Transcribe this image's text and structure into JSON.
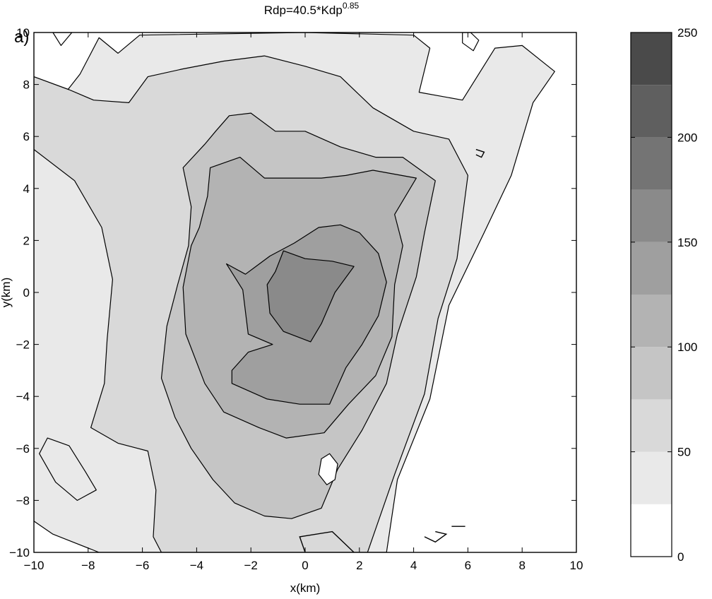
{
  "panel_label": "a)",
  "title": {
    "base": "Rdp=40.5*Kdp",
    "exponent": "0.85"
  },
  "colorbar": {
    "range": [
      0,
      250
    ],
    "levels": [
      0,
      25,
      50,
      75,
      100,
      125,
      150,
      175,
      200,
      225,
      250
    ],
    "level_greys": [
      "#ffffff",
      "#e9e9e9",
      "#d9d9d9",
      "#c5c5c5",
      "#b3b3b3",
      "#9f9f9f",
      "#8a8a8a",
      "#747474",
      "#5f5f5f",
      "#4a4a4a"
    ],
    "ticks": [
      0,
      50,
      100,
      150,
      200,
      250
    ],
    "tick_labels": [
      "0",
      "50",
      "100",
      "150",
      "200",
      "250"
    ]
  },
  "chart_data": {
    "type": "contour",
    "title": "Rdp=40.5*Kdp^0.85",
    "xlabel": "x(km)",
    "ylabel": "y(km)",
    "xlim": [
      -10,
      10
    ],
    "ylim": [
      -10,
      10
    ],
    "xticks": [
      -10,
      -8,
      -6,
      -4,
      -2,
      0,
      2,
      4,
      6,
      8,
      10
    ],
    "yticks": [
      -10,
      -8,
      -6,
      -4,
      -2,
      0,
      2,
      4,
      6,
      8,
      10
    ],
    "xtick_labels": [
      "−10",
      "−8",
      "−6",
      "−4",
      "−2",
      "0",
      "2",
      "4",
      "6",
      "8",
      "10"
    ],
    "ytick_labels": [
      "−10",
      "−8",
      "−6",
      "−4",
      "−2",
      "0",
      "2",
      "4",
      "6",
      "8",
      "10"
    ],
    "grid": false,
    "contour_levels": [
      25,
      50,
      75,
      100,
      125,
      150
    ],
    "regions": [
      {
        "level": 25,
        "fill": "#e9e9e9",
        "points": [
          [
            -10,
            7
          ],
          [
            -9.2,
            7.2
          ],
          [
            -8.3,
            8.4
          ],
          [
            -7.6,
            9.8
          ],
          [
            -6.9,
            9.2
          ],
          [
            -6.1,
            9.9
          ],
          [
            0,
            10
          ],
          [
            4,
            9.9
          ],
          [
            4.6,
            9.4
          ],
          [
            4.2,
            7.7
          ],
          [
            5.8,
            7.4
          ],
          [
            7,
            9.4
          ],
          [
            8,
            9.5
          ],
          [
            9.2,
            8.5
          ],
          [
            8.4,
            7.3
          ],
          [
            7.6,
            4.5
          ],
          [
            6.6,
            2.3
          ],
          [
            5.3,
            -0.5
          ],
          [
            4.6,
            -4.1
          ],
          [
            3.4,
            -7.2
          ],
          [
            3,
            -10
          ],
          [
            -7.6,
            -10
          ],
          [
            -9.3,
            -9.3
          ],
          [
            -10,
            -8.8
          ]
        ]
      },
      {
        "level": 25,
        "fill": "#e9e9e9",
        "points": [
          [
            -8.7,
            -5.9
          ],
          [
            -8.1,
            -6.9
          ],
          [
            -7.7,
            -7.6
          ],
          [
            -8.4,
            -8
          ],
          [
            -9.2,
            -7.3
          ],
          [
            -9.8,
            -6.2
          ],
          [
            -9.5,
            -5.6
          ]
        ]
      },
      {
        "level": 50,
        "fill": "#d9d9d9",
        "points": [
          [
            -10,
            5.5
          ],
          [
            -8.5,
            4.3
          ],
          [
            -7.5,
            2.5
          ],
          [
            -7.1,
            0.5
          ],
          [
            -7.3,
            -1.8
          ],
          [
            -7.4,
            -3.5
          ],
          [
            -7.9,
            -5.2
          ],
          [
            -6.9,
            -5.8
          ],
          [
            -5.8,
            -6.1
          ],
          [
            -5.5,
            -7.6
          ],
          [
            -5.6,
            -9.4
          ],
          [
            -5.3,
            -10
          ],
          [
            2.3,
            -10
          ],
          [
            3.3,
            -7
          ],
          [
            4.4,
            -3.9
          ],
          [
            4.9,
            -1
          ],
          [
            5.6,
            1.3
          ],
          [
            6,
            4.5
          ],
          [
            5.3,
            5.9
          ],
          [
            4,
            6.2
          ],
          [
            2.5,
            7.1
          ],
          [
            1.3,
            8.3
          ],
          [
            0,
            8.7
          ],
          [
            -1.5,
            9.1
          ],
          [
            -3,
            8.9
          ],
          [
            -4.5,
            8.6
          ],
          [
            -5.8,
            8.3
          ],
          [
            -6.5,
            7.3
          ],
          [
            -7.8,
            7.4
          ],
          [
            -8.7,
            7.8
          ],
          [
            -10,
            8.3
          ]
        ]
      },
      {
        "level": 75,
        "fill": "#c5c5c5",
        "points": [
          [
            -4.2,
            3.3
          ],
          [
            -4.3,
            1.8
          ],
          [
            -4.7,
            0.3
          ],
          [
            -5.1,
            -1.3
          ],
          [
            -5.3,
            -3.3
          ],
          [
            -4.8,
            -4.8
          ],
          [
            -4.2,
            -6
          ],
          [
            -3.4,
            -7.2
          ],
          [
            -2.6,
            -8.1
          ],
          [
            -1.5,
            -8.6
          ],
          [
            -0.5,
            -8.7
          ],
          [
            0.6,
            -8.3
          ],
          [
            1.2,
            -6.8
          ],
          [
            2.1,
            -5.3
          ],
          [
            3,
            -3.5
          ],
          [
            3.4,
            -1.6
          ],
          [
            4.1,
            0.6
          ],
          [
            4.4,
            2.3
          ],
          [
            4.8,
            4.3
          ],
          [
            3.6,
            5.2
          ],
          [
            2.6,
            5.2
          ],
          [
            1.3,
            5.6
          ],
          [
            0,
            6.2
          ],
          [
            -1.1,
            6.2
          ],
          [
            -2,
            6.9
          ],
          [
            -2.8,
            6.8
          ],
          [
            -3.3,
            6.2
          ],
          [
            -3.7,
            5.7
          ],
          [
            -4.5,
            4.8
          ]
        ]
      },
      {
        "level": 100,
        "fill": "#b3b3b3",
        "points": [
          [
            -4.2,
            1.8
          ],
          [
            -4.5,
            0.2
          ],
          [
            -4.4,
            -1.6
          ],
          [
            -3.7,
            -3.5
          ],
          [
            -3,
            -4.6
          ],
          [
            -1.7,
            -5.2
          ],
          [
            -0.7,
            -5.6
          ],
          [
            0.7,
            -5.4
          ],
          [
            1.6,
            -4.3
          ],
          [
            2.6,
            -3.2
          ],
          [
            3.2,
            -1.7
          ],
          [
            3.3,
            0.3
          ],
          [
            3.6,
            1.8
          ],
          [
            3.3,
            3
          ],
          [
            4.1,
            4.4
          ],
          [
            2.5,
            4.7
          ],
          [
            1.5,
            4.5
          ],
          [
            0.6,
            4.4
          ],
          [
            -0.5,
            4.4
          ],
          [
            -1.5,
            4.4
          ],
          [
            -2.4,
            5.2
          ],
          [
            -3.5,
            4.8
          ],
          [
            -3.6,
            3.7
          ],
          [
            -3.9,
            2.5
          ]
        ]
      },
      {
        "level": 125,
        "fill": "#9f9f9f",
        "points": [
          [
            -2.9,
            1.1
          ],
          [
            -2.2,
            0.7
          ],
          [
            -1.3,
            1.4
          ],
          [
            -0.4,
            1.9
          ],
          [
            0.5,
            2.5
          ],
          [
            1.3,
            2.6
          ],
          [
            2,
            2.3
          ],
          [
            2.7,
            1.5
          ],
          [
            3,
            0.4
          ],
          [
            2.7,
            -0.9
          ],
          [
            2.1,
            -2
          ],
          [
            1.5,
            -2.9
          ],
          [
            0.9,
            -4.3
          ],
          [
            -0.2,
            -4.3
          ],
          [
            -1.4,
            -4.1
          ],
          [
            -2.7,
            -3.5
          ],
          [
            -2.7,
            -3
          ],
          [
            -2.1,
            -2.3
          ],
          [
            -1.2,
            -2
          ],
          [
            -2.1,
            -1.6
          ],
          [
            -2.3,
            0.1
          ]
        ]
      },
      {
        "level": 150,
        "fill": "#8a8a8a",
        "points": [
          [
            -0.8,
            1.6
          ],
          [
            0,
            1.3
          ],
          [
            1,
            1.2
          ],
          [
            1.8,
            1
          ],
          [
            1.1,
            0
          ],
          [
            0.6,
            -1.2
          ],
          [
            0.2,
            -1.9
          ],
          [
            -0.8,
            -1.5
          ],
          [
            -1.3,
            -0.8
          ],
          [
            -1.4,
            0.3
          ],
          [
            -1.1,
            0.8
          ]
        ]
      },
      {
        "level": 25,
        "fill": "#ffffff",
        "points": [
          [
            0.9,
            -6.2
          ],
          [
            1.2,
            -6.6
          ],
          [
            1.1,
            -7.2
          ],
          [
            0.8,
            -7.4
          ],
          [
            0.5,
            -7
          ],
          [
            0.6,
            -6.4
          ]
        ]
      },
      {
        "level": 25,
        "fill": "#ffffff",
        "points": [
          [
            -9.3,
            10
          ],
          [
            -9,
            9.5
          ],
          [
            -8.6,
            10
          ]
        ]
      },
      {
        "level": 25,
        "fill": "#ffffff",
        "points": [
          [
            5.8,
            9.6
          ],
          [
            6.2,
            9.3
          ],
          [
            6.4,
            9.7
          ],
          [
            6.1,
            10
          ],
          [
            5.8,
            10
          ]
        ]
      }
    ],
    "open_contours": [
      {
        "level": 25,
        "points": [
          [
            0,
            -10
          ],
          [
            -0.2,
            -9.4
          ],
          [
            1,
            -9.2
          ],
          [
            1.8,
            -10
          ]
        ]
      },
      {
        "level": 25,
        "points": [
          [
            4.8,
            -9.2
          ],
          [
            5.2,
            -9.3
          ],
          [
            4.8,
            -9.6
          ],
          [
            4.4,
            -9.4
          ]
        ]
      },
      {
        "level": 25,
        "points": [
          [
            5.4,
            -9
          ],
          [
            5.9,
            -9
          ]
        ]
      },
      {
        "level": 25,
        "points": [
          [
            6.3,
            5.5
          ],
          [
            6.6,
            5.4
          ],
          [
            6.5,
            5.2
          ],
          [
            6.3,
            5.3
          ]
        ]
      }
    ]
  }
}
